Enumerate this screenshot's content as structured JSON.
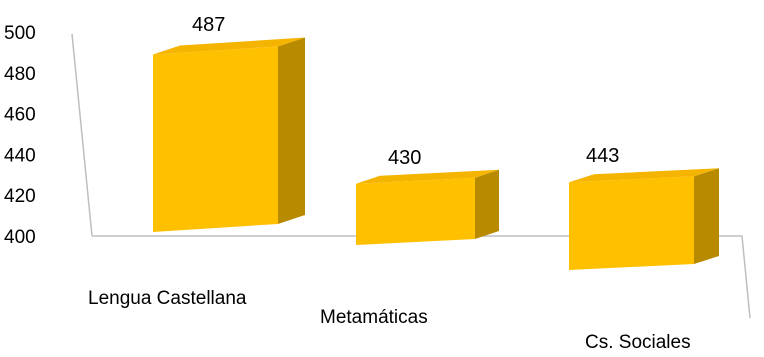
{
  "chart_data": {
    "type": "bar",
    "categories": [
      "Lengua Castellana",
      "Metamáticas",
      "Cs. Sociales"
    ],
    "values": [
      487,
      430,
      443
    ],
    "title": "",
    "xlabel": "",
    "ylabel": "",
    "ylim": [
      400,
      500
    ],
    "yticks": [
      "400",
      "420",
      "440",
      "460",
      "480",
      "500"
    ],
    "data_labels": [
      "487",
      "430",
      "443"
    ],
    "bar_color": "#FFC000",
    "bar_side_color": "#B88A00",
    "bar_top_color": "#F4B400",
    "grid": false,
    "legend": "none",
    "view": "3d-perspective"
  }
}
